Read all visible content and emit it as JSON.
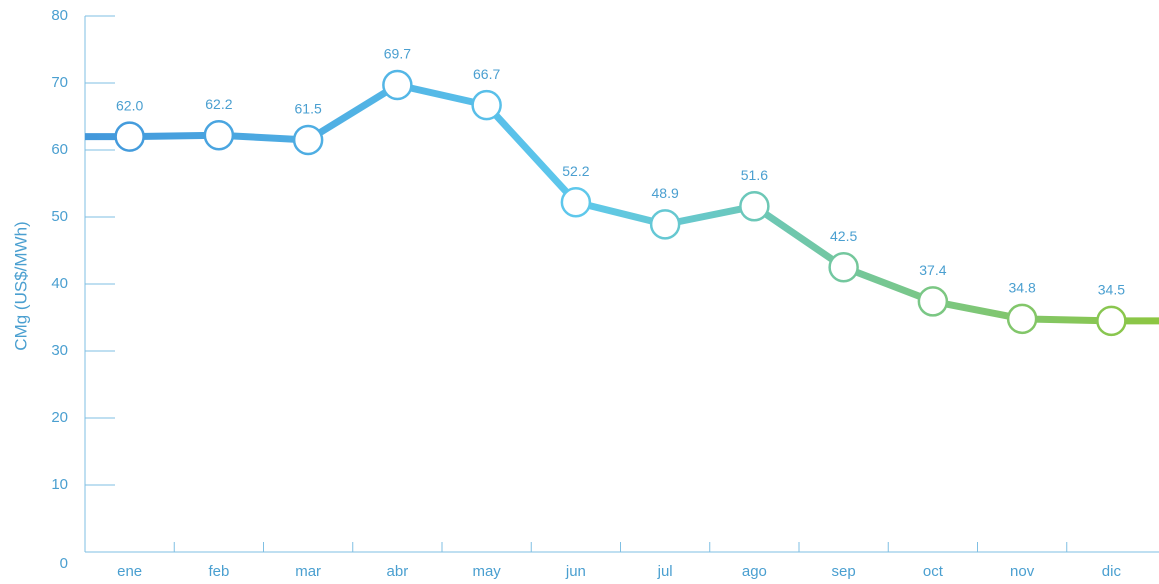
{
  "chart_data": {
    "type": "line",
    "y_label": "CMg (US$/MWh)",
    "categories": [
      "ene",
      "feb",
      "mar",
      "abr",
      "may",
      "jun",
      "jul",
      "ago",
      "sep",
      "oct",
      "nov",
      "dic"
    ],
    "values": [
      62.0,
      62.2,
      61.5,
      69.7,
      66.7,
      52.2,
      48.9,
      51.6,
      42.5,
      37.4,
      34.8,
      34.5
    ],
    "value_labels": [
      "62.0",
      "62.2",
      "61.5",
      "69.7",
      "66.7",
      "52.2",
      "48.9",
      "51.6",
      "42.5",
      "37.4",
      "34.8",
      "34.5"
    ],
    "line_gradient": [
      "#3d8fd8",
      "#5ec8ec",
      "#8dc641"
    ],
    "ylim": [
      0,
      80
    ],
    "yticks": [
      0,
      10,
      20,
      30,
      40,
      50,
      60,
      70,
      80
    ],
    "grid": false
  }
}
